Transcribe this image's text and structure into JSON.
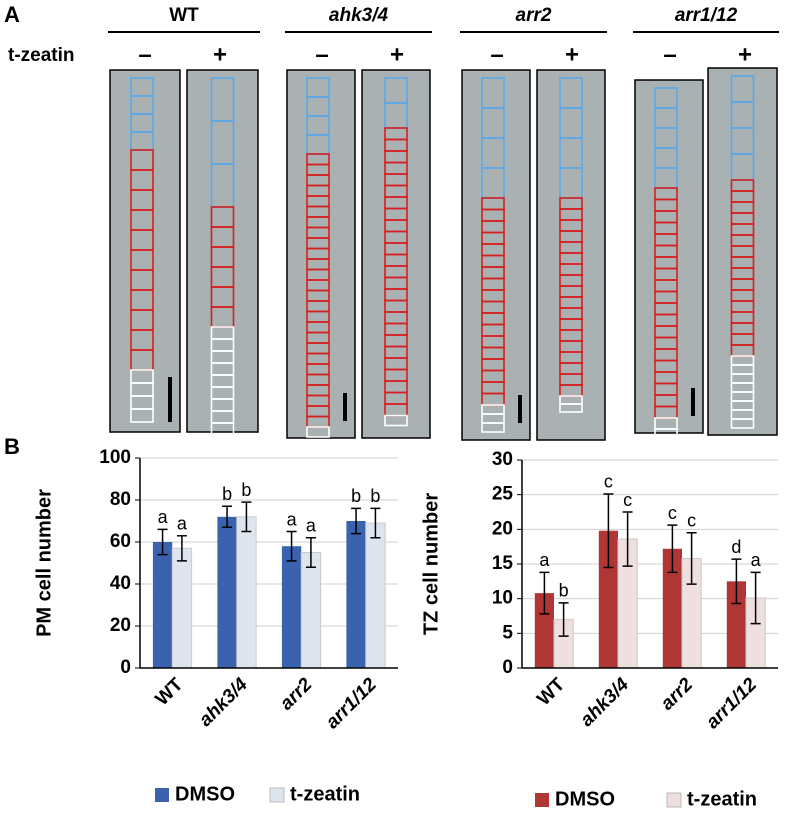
{
  "panel_a": {
    "label": "A",
    "row_label": "t-zeatin",
    "genotypes": [
      "WT",
      "ahk3/4",
      "arr2",
      "arr1/12"
    ],
    "treatments": [
      "–",
      "+"
    ]
  },
  "panel_b_label": "B",
  "chart_data": [
    {
      "type": "bar",
      "y_label": "PM cell number",
      "categories": [
        "WT",
        "ahk3/4",
        "arr2",
        "arr1/12"
      ],
      "series": [
        {
          "name": "DMSO",
          "color": "#3a62ae",
          "values": [
            60,
            72,
            58,
            70
          ],
          "errors": [
            6,
            5,
            7,
            6
          ],
          "labels": [
            "a",
            "b",
            "a",
            "b"
          ]
        },
        {
          "name": "t-zeatin",
          "color": "#dfe5ee",
          "values": [
            57,
            72,
            55,
            69
          ],
          "errors": [
            6,
            7,
            7,
            7
          ],
          "labels": [
            "a",
            "b",
            "a",
            "b"
          ]
        }
      ],
      "ylim": [
        0,
        100
      ],
      "yticks": [
        0,
        20,
        40,
        60,
        80,
        100
      ],
      "grid": true,
      "legend": "bottom"
    },
    {
      "type": "bar",
      "y_label": "TZ cell number",
      "categories": [
        "WT",
        "ahk3/4",
        "arr2",
        "arr1/12"
      ],
      "series": [
        {
          "name": "DMSO",
          "color": "#b03636",
          "values": [
            10.8,
            19.8,
            17.2,
            12.5
          ],
          "errors": [
            3,
            5.3,
            3.4,
            3.2
          ],
          "labels": [
            "a",
            "c",
            "c",
            "d"
          ]
        },
        {
          "name": "t-zeatin",
          "color": "#efdfdf",
          "values": [
            7,
            18.6,
            15.8,
            10.1
          ],
          "errors": [
            2.4,
            3.9,
            3.7,
            3.7
          ],
          "labels": [
            "b",
            "c",
            "c",
            "a"
          ]
        }
      ],
      "ylim": [
        0,
        30
      ],
      "yticks": [
        0,
        5,
        10,
        15,
        20,
        25,
        30
      ],
      "grid": true,
      "legend": "bottom"
    }
  ]
}
